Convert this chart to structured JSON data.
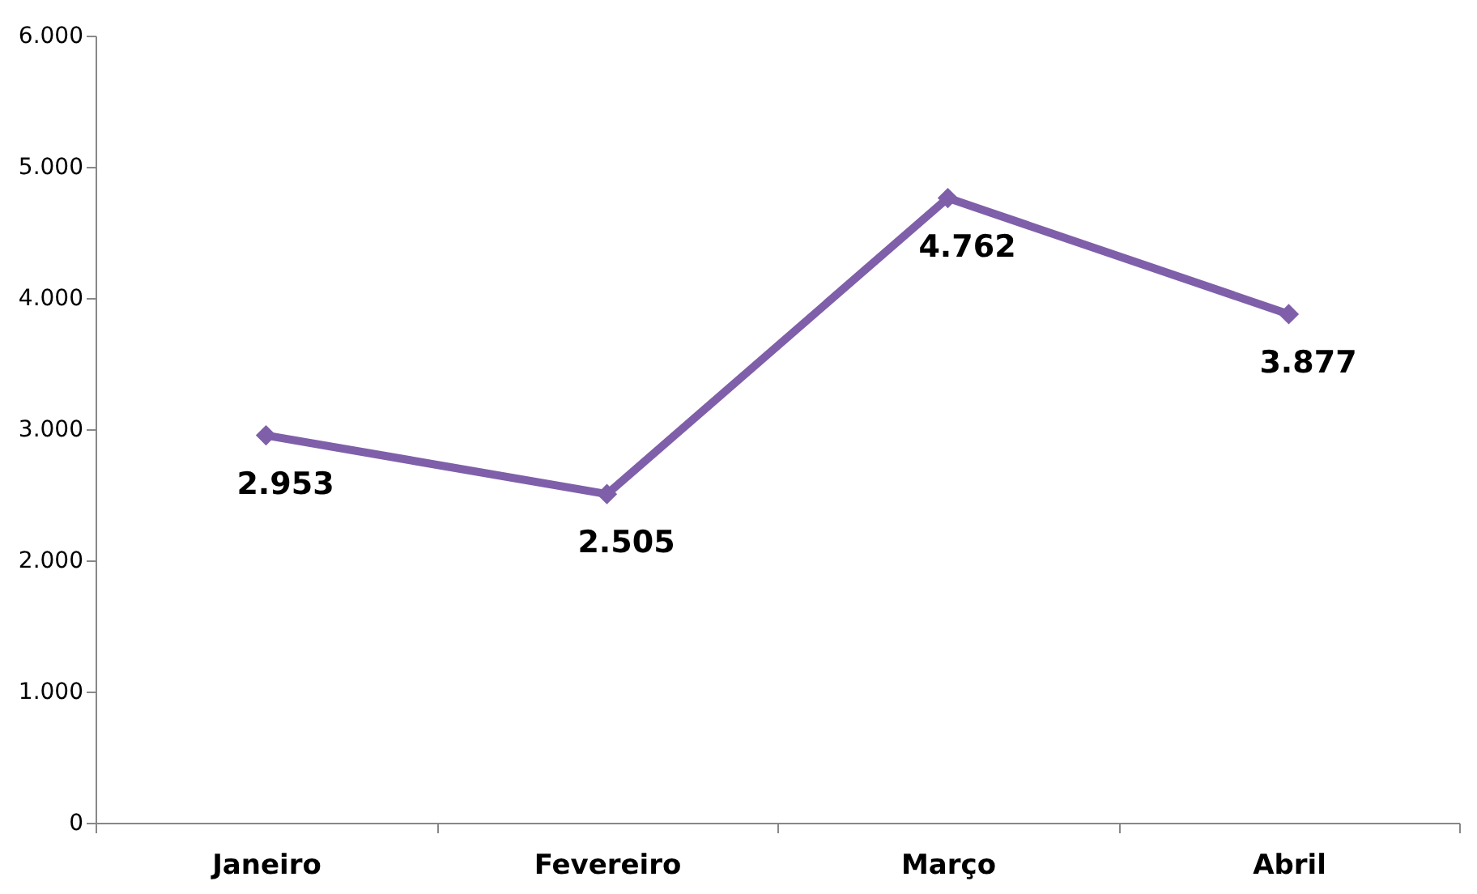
{
  "chart_data": {
    "type": "line",
    "categories": [
      "Janeiro",
      "Fevereiro",
      "Março",
      "Abril"
    ],
    "series": [
      {
        "color": "#7f5fa9",
        "values": [
          2953,
          2505,
          4762,
          3877
        ],
        "value_labels": [
          "2.953",
          "2.505",
          "4.762",
          "3.877"
        ]
      }
    ],
    "ylim": [
      0,
      6000
    ],
    "yticks": [
      0,
      {
        "value": 1000,
        "label": "1.000"
      },
      {
        "value": 2000,
        "label": "2.000"
      },
      {
        "value": 3000,
        "label": "3.000"
      },
      {
        "value": 4000,
        "label": "4.000"
      },
      {
        "value": 5000,
        "label": "5.000"
      },
      {
        "value": 6000,
        "label": "6.000"
      }
    ],
    "grid": false,
    "marker": "diamond",
    "line_style": "solid"
  }
}
